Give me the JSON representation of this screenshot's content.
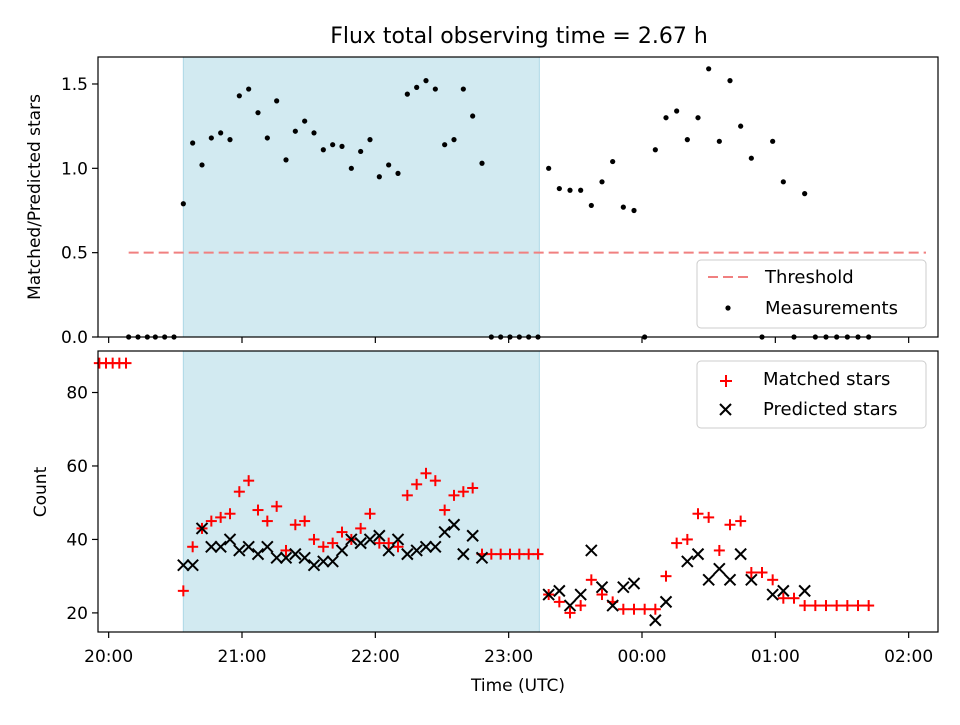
{
  "title": "Flux total observing time = 2.67 h",
  "colors": {
    "threshold": "#f08080",
    "measurement": "#000000",
    "matched": "#ff0000",
    "predicted": "#000000",
    "shade": "#add8e6"
  },
  "x_ticks": [
    "20:00",
    "21:00",
    "22:00",
    "23:00",
    "00:00",
    "01:00",
    "02:00"
  ],
  "x_tick_hours": [
    0,
    1,
    2,
    3,
    4,
    5,
    6
  ],
  "xlabel": "Time (UTC)",
  "xlim_hours": [
    -0.08,
    6.22
  ],
  "shaded_interval_hours": [
    0.56,
    3.23
  ],
  "chart_data": [
    {
      "type": "scatter",
      "ylabel": "Matched/Predicted stars",
      "ylim": [
        0,
        1.66
      ],
      "y_ticks": [
        "0.0",
        "0.5",
        "1.0",
        "1.5"
      ],
      "y_tick_values": [
        0,
        0.5,
        1.0,
        1.5
      ],
      "threshold": {
        "name": "Threshold",
        "y": 0.5,
        "x_range_hours": [
          0.15,
          6.13
        ]
      },
      "legend": {
        "position": "lower right",
        "entries": [
          "Threshold",
          "Measurements"
        ]
      },
      "series": [
        {
          "name": "Measurements",
          "points": [
            [
              0.15,
              0
            ],
            [
              0.22,
              0
            ],
            [
              0.29,
              0
            ],
            [
              0.35,
              0
            ],
            [
              0.42,
              0
            ],
            [
              0.49,
              0
            ],
            [
              0.56,
              0.79
            ],
            [
              0.63,
              1.15
            ],
            [
              0.7,
              1.02
            ],
            [
              0.77,
              1.18
            ],
            [
              0.84,
              1.21
            ],
            [
              0.91,
              1.17
            ],
            [
              0.98,
              1.43
            ],
            [
              1.05,
              1.47
            ],
            [
              1.12,
              1.33
            ],
            [
              1.19,
              1.18
            ],
            [
              1.26,
              1.4
            ],
            [
              1.33,
              1.05
            ],
            [
              1.4,
              1.22
            ],
            [
              1.47,
              1.28
            ],
            [
              1.54,
              1.21
            ],
            [
              1.61,
              1.11
            ],
            [
              1.68,
              1.14
            ],
            [
              1.75,
              1.13
            ],
            [
              1.82,
              1.0
            ],
            [
              1.89,
              1.1
            ],
            [
              1.96,
              1.17
            ],
            [
              2.03,
              0.95
            ],
            [
              2.1,
              1.02
            ],
            [
              2.17,
              0.97
            ],
            [
              2.24,
              1.44
            ],
            [
              2.31,
              1.48
            ],
            [
              2.38,
              1.52
            ],
            [
              2.45,
              1.47
            ],
            [
              2.52,
              1.14
            ],
            [
              2.59,
              1.17
            ],
            [
              2.66,
              1.47
            ],
            [
              2.73,
              1.31
            ],
            [
              2.8,
              1.03
            ],
            [
              2.87,
              0
            ],
            [
              2.94,
              0
            ],
            [
              3.01,
              0
            ],
            [
              3.08,
              0
            ],
            [
              3.15,
              0
            ],
            [
              3.22,
              0
            ],
            [
              3.3,
              1.0
            ],
            [
              3.38,
              0.88
            ],
            [
              3.46,
              0.87
            ],
            [
              3.54,
              0.87
            ],
            [
              3.62,
              0.78
            ],
            [
              3.7,
              0.92
            ],
            [
              3.78,
              1.04
            ],
            [
              3.86,
              0.77
            ],
            [
              3.94,
              0.75
            ],
            [
              4.02,
              0
            ],
            [
              4.1,
              1.11
            ],
            [
              4.18,
              1.3
            ],
            [
              4.26,
              1.34
            ],
            [
              4.34,
              1.17
            ],
            [
              4.42,
              1.3
            ],
            [
              4.5,
              1.59
            ],
            [
              4.58,
              1.16
            ],
            [
              4.66,
              1.52
            ],
            [
              4.74,
              1.25
            ],
            [
              4.82,
              1.06
            ],
            [
              4.9,
              0
            ],
            [
              4.98,
              1.16
            ],
            [
              5.06,
              0.92
            ],
            [
              5.14,
              0
            ],
            [
              5.22,
              0.85
            ],
            [
              5.3,
              0
            ],
            [
              5.38,
              0
            ],
            [
              5.46,
              0
            ],
            [
              5.54,
              0
            ],
            [
              5.62,
              0
            ],
            [
              5.7,
              0
            ]
          ]
        }
      ]
    },
    {
      "type": "scatter",
      "ylabel": "Count",
      "ylim": [
        14.8,
        91.3
      ],
      "y_ticks": [
        "20",
        "40",
        "60",
        "80"
      ],
      "y_tick_values": [
        20,
        40,
        60,
        80
      ],
      "legend": {
        "position": "upper right",
        "entries": [
          "Matched stars",
          "Predicted stars"
        ]
      },
      "series": [
        {
          "name": "Matched stars",
          "points": [
            [
              -0.07,
              88
            ],
            [
              -0.02,
              88
            ],
            [
              0.03,
              88
            ],
            [
              0.08,
              88
            ],
            [
              0.13,
              88
            ],
            [
              0.56,
              26
            ],
            [
              0.63,
              38
            ],
            [
              0.7,
              43
            ],
            [
              0.77,
              45
            ],
            [
              0.84,
              46
            ],
            [
              0.91,
              47
            ],
            [
              0.98,
              53
            ],
            [
              1.05,
              56
            ],
            [
              1.12,
              48
            ],
            [
              1.19,
              45
            ],
            [
              1.26,
              49
            ],
            [
              1.33,
              37
            ],
            [
              1.4,
              44
            ],
            [
              1.47,
              45
            ],
            [
              1.54,
              40
            ],
            [
              1.61,
              38
            ],
            [
              1.68,
              39
            ],
            [
              1.75,
              42
            ],
            [
              1.82,
              40
            ],
            [
              1.89,
              43
            ],
            [
              1.96,
              47
            ],
            [
              2.03,
              39
            ],
            [
              2.1,
              39
            ],
            [
              2.17,
              38
            ],
            [
              2.24,
              52
            ],
            [
              2.31,
              55
            ],
            [
              2.38,
              58
            ],
            [
              2.45,
              56
            ],
            [
              2.52,
              48
            ],
            [
              2.59,
              52
            ],
            [
              2.66,
              53
            ],
            [
              2.73,
              54
            ],
            [
              2.8,
              36
            ],
            [
              2.87,
              36
            ],
            [
              2.94,
              36
            ],
            [
              3.01,
              36
            ],
            [
              3.08,
              36
            ],
            [
              3.15,
              36
            ],
            [
              3.22,
              36
            ],
            [
              3.3,
              25
            ],
            [
              3.38,
              23
            ],
            [
              3.46,
              20
            ],
            [
              3.54,
              22
            ],
            [
              3.62,
              29
            ],
            [
              3.7,
              25
            ],
            [
              3.78,
              23
            ],
            [
              3.86,
              21
            ],
            [
              3.94,
              21
            ],
            [
              4.02,
              21
            ],
            [
              4.1,
              21
            ],
            [
              4.18,
              30
            ],
            [
              4.26,
              39
            ],
            [
              4.34,
              40
            ],
            [
              4.42,
              47
            ],
            [
              4.5,
              46
            ],
            [
              4.58,
              37
            ],
            [
              4.66,
              44
            ],
            [
              4.74,
              45
            ],
            [
              4.82,
              31
            ],
            [
              4.9,
              31
            ],
            [
              4.98,
              29
            ],
            [
              5.06,
              24
            ],
            [
              5.14,
              24
            ],
            [
              5.22,
              22
            ],
            [
              5.3,
              22
            ],
            [
              5.38,
              22
            ],
            [
              5.46,
              22
            ],
            [
              5.54,
              22
            ],
            [
              5.62,
              22
            ],
            [
              5.7,
              22
            ]
          ]
        },
        {
          "name": "Predicted stars",
          "points": [
            [
              0.56,
              33
            ],
            [
              0.63,
              33
            ],
            [
              0.7,
              43
            ],
            [
              0.77,
              38
            ],
            [
              0.84,
              38
            ],
            [
              0.91,
              40
            ],
            [
              0.98,
              37
            ],
            [
              1.05,
              38
            ],
            [
              1.12,
              36
            ],
            [
              1.19,
              38
            ],
            [
              1.26,
              35
            ],
            [
              1.33,
              35
            ],
            [
              1.4,
              36
            ],
            [
              1.47,
              35
            ],
            [
              1.54,
              33
            ],
            [
              1.61,
              34
            ],
            [
              1.68,
              34
            ],
            [
              1.75,
              37
            ],
            [
              1.82,
              40
            ],
            [
              1.89,
              39
            ],
            [
              1.96,
              40
            ],
            [
              2.03,
              41
            ],
            [
              2.1,
              37
            ],
            [
              2.17,
              40
            ],
            [
              2.24,
              36
            ],
            [
              2.31,
              37
            ],
            [
              2.38,
              38
            ],
            [
              2.45,
              38
            ],
            [
              2.52,
              42
            ],
            [
              2.59,
              44
            ],
            [
              2.66,
              36
            ],
            [
              2.73,
              41
            ],
            [
              2.8,
              35
            ],
            [
              3.3,
              25
            ],
            [
              3.38,
              26
            ],
            [
              3.46,
              22
            ],
            [
              3.54,
              25
            ],
            [
              3.62,
              37
            ],
            [
              3.7,
              27
            ],
            [
              3.78,
              22
            ],
            [
              3.86,
              27
            ],
            [
              3.94,
              28
            ],
            [
              4.1,
              18
            ],
            [
              4.18,
              23
            ],
            [
              4.34,
              34
            ],
            [
              4.42,
              36
            ],
            [
              4.5,
              29
            ],
            [
              4.58,
              32
            ],
            [
              4.66,
              29
            ],
            [
              4.74,
              36
            ],
            [
              4.82,
              29
            ],
            [
              4.98,
              25
            ],
            [
              5.06,
              26
            ],
            [
              5.22,
              26
            ]
          ]
        }
      ]
    }
  ]
}
